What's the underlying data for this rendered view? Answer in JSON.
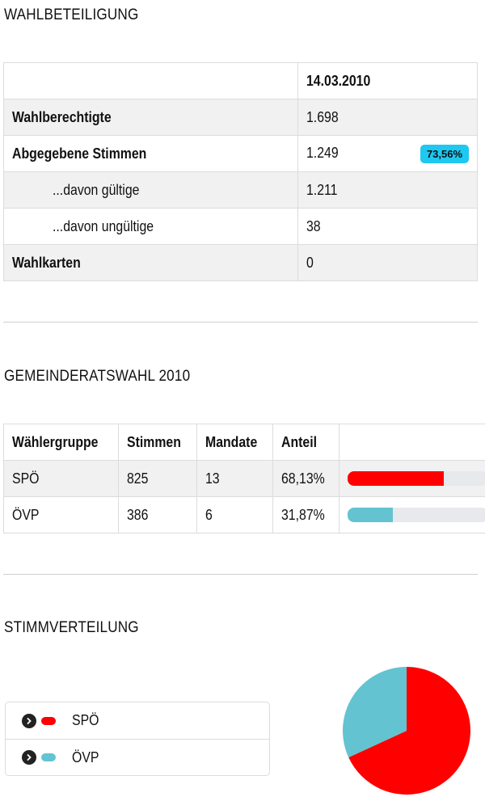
{
  "turnout": {
    "title": "WAHLBETEILIGUNG",
    "date_header": "14.03.2010",
    "rows": [
      {
        "label": "Wahlberechtigte",
        "value": "1.698"
      },
      {
        "label": "Abgegebene Stimmen",
        "value": "1.249",
        "badge": "73,56%"
      },
      {
        "label": "...davon gültige",
        "value": "1.211"
      },
      {
        "label": "...davon ungültige",
        "value": "38"
      },
      {
        "label": "Wahlkarten",
        "value": "0"
      }
    ],
    "badge_color": "#1ec8f0"
  },
  "results": {
    "title": "GEMEINDERATSWAHL 2010",
    "headers": [
      "Wählergruppe",
      "Stimmen",
      "Mandate",
      "Anteil"
    ],
    "rows": [
      {
        "party": "SPÖ",
        "votes": "825",
        "seats": "13",
        "share": "68,13%",
        "share_value": 68.13,
        "color": "#ff0000"
      },
      {
        "party": "ÖVP",
        "votes": "386",
        "seats": "6",
        "share": "31,87%",
        "share_value": 31.87,
        "color": "#63c3d1"
      }
    ]
  },
  "distribution": {
    "title": "STIMMVERTEILUNG",
    "legend": [
      {
        "label": "SPÖ",
        "color": "#ff0000",
        "icon": "chevron-right-icon"
      },
      {
        "label": "ÖVP",
        "color": "#63c3d1",
        "icon": "chevron-right-icon"
      }
    ]
  },
  "chart_data": {
    "type": "pie",
    "categories": [
      "SPÖ",
      "ÖVP"
    ],
    "values": [
      68.13,
      31.87
    ],
    "colors": [
      "#ff0000",
      "#63c3d1"
    ],
    "title": ""
  }
}
